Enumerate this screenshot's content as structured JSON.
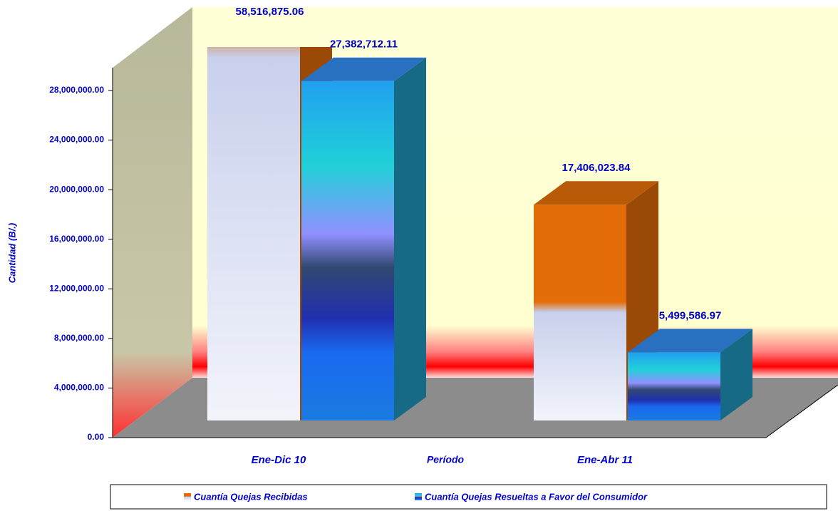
{
  "chart_data": {
    "type": "bar3d",
    "y_axis_label": "Cantidad (B/.)",
    "x_axis_label": "Período",
    "categories": [
      "Ene-Dic 10",
      "Ene-Abr 11"
    ],
    "series": [
      {
        "name": "Cuantía Quejas Recibidas",
        "color": "#e36c09",
        "values": [
          58516875.06,
          17406023.84
        ],
        "value_labels": [
          "58,516,875.06",
          "17,406,023.84"
        ]
      },
      {
        "name": "Cuantía Quejas Resueltas a Favor del Consumidor",
        "color": "#1e7fd6",
        "values": [
          27382712.11,
          5499586.97
        ],
        "value_labels": [
          "27,382,712.11",
          "5,499,586.97"
        ]
      }
    ],
    "ylim": [
      0,
      30000000
    ],
    "yticks": [
      {
        "value": 0,
        "label": "0.00"
      },
      {
        "value": 4000000,
        "label": "4,000,000.00"
      },
      {
        "value": 8000000,
        "label": "8,000,000.00"
      },
      {
        "value": 12000000,
        "label": "12,000,000.00"
      },
      {
        "value": 16000000,
        "label": "16,000,000.00"
      },
      {
        "value": 20000000,
        "label": "20,000,000.00"
      },
      {
        "value": 24000000,
        "label": "24,000,000.00"
      },
      {
        "value": 28000000,
        "label": "28,000,000.00"
      }
    ]
  }
}
